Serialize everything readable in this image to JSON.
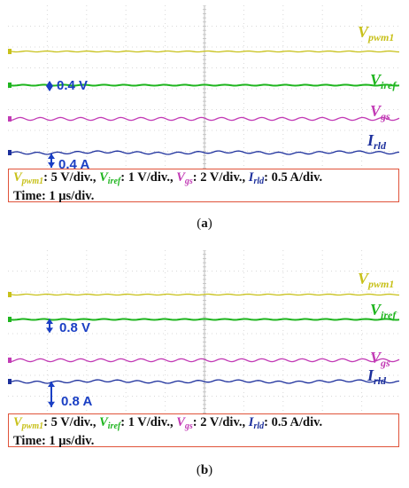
{
  "panels": [
    {
      "id": "a",
      "label": "(a)",
      "label_letter": "a",
      "traces": [
        {
          "key": "vpwm",
          "name_main": "V",
          "name_sub": "pwm1",
          "color": "#c8c11a"
        },
        {
          "key": "viref",
          "name_main": "V",
          "name_sub": "iref",
          "color": "#1fb51f"
        },
        {
          "key": "vgs",
          "name_main": "V",
          "name_sub": "gs",
          "color": "#c23bb5"
        },
        {
          "key": "irld",
          "name_main": "I",
          "name_sub": "rld",
          "color": "#1c2f9c"
        }
      ],
      "annotations": {
        "viref_step": "0.4 V",
        "irld_step": "0.4  A"
      },
      "caption": {
        "vpwm": {
          "name_main": "V",
          "name_sub": "pwm1",
          "unit": ": 5 V/div., "
        },
        "viref": {
          "name_main": "V",
          "name_sub": "iref",
          "unit": ": 1 V/div., "
        },
        "vgs": {
          "name_main": "V",
          "name_sub": "gs",
          "unit": ": 2 V/div., "
        },
        "irld": {
          "name_main": "I",
          "name_sub": "rld",
          "unit": ": 0.5 A/div."
        },
        "time": "Time: 1 μs/div."
      }
    },
    {
      "id": "b",
      "label": "(b)",
      "label_letter": "b",
      "traces": [
        {
          "key": "vpwm",
          "name_main": "V",
          "name_sub": "pwm1",
          "color": "#c8c11a"
        },
        {
          "key": "viref",
          "name_main": "V",
          "name_sub": "iref",
          "color": "#1fb51f"
        },
        {
          "key": "vgs",
          "name_main": "V",
          "name_sub": "gs",
          "color": "#c23bb5"
        },
        {
          "key": "irld",
          "name_main": "I",
          "name_sub": "rld",
          "color": "#1c2f9c"
        }
      ],
      "annotations": {
        "viref_step": "0.8 V",
        "irld_step": "0.8  A"
      },
      "caption": {
        "vpwm": {
          "name_main": "V",
          "name_sub": "pwm1",
          "unit": ": 5 V/div., "
        },
        "viref": {
          "name_main": "V",
          "name_sub": "iref",
          "unit": ": 1 V/div., "
        },
        "vgs": {
          "name_main": "V",
          "name_sub": "gs",
          "unit": ": 2 V/div., "
        },
        "irld": {
          "name_main": "I",
          "name_sub": "rld",
          "unit": ": 0.5 A/div."
        },
        "time": "Time: 1 μs/div."
      }
    }
  ],
  "chart_data": [
    {
      "type": "line",
      "panel": "a",
      "grid": true,
      "series": [
        {
          "name": "Vpwm1",
          "values": [
            0,
            0,
            0,
            0,
            0,
            0,
            0,
            0,
            0,
            0
          ]
        },
        {
          "name": "Viref",
          "values": [
            0.4,
            0.4,
            0.4,
            0.4,
            0.4,
            0.4,
            0.4,
            0.4,
            0.4,
            0.4
          ]
        },
        {
          "name": "Vgs",
          "values": [
            0,
            0,
            0,
            0,
            0,
            0,
            0,
            0,
            0,
            0
          ]
        },
        {
          "name": "Irld",
          "values": [
            0.4,
            0.4,
            0.4,
            0.4,
            0.4,
            0.4,
            0.4,
            0.4,
            0.4,
            0.4
          ]
        }
      ]
    },
    {
      "type": "line",
      "panel": "b",
      "grid": true,
      "series": [
        {
          "name": "Vpwm1",
          "values": [
            0,
            0,
            0,
            0,
            0,
            0,
            0,
            0,
            0,
            0
          ]
        },
        {
          "name": "Viref",
          "values": [
            0.8,
            0.8,
            0.8,
            0.8,
            0.8,
            0.8,
            0.8,
            0.8,
            0.8,
            0.8
          ]
        },
        {
          "name": "Vgs",
          "values": [
            0,
            0,
            0,
            0,
            0,
            0,
            0,
            0,
            0,
            0
          ]
        },
        {
          "name": "Irld",
          "values": [
            0.8,
            0.8,
            0.8,
            0.8,
            0.8,
            0.8,
            0.8,
            0.8,
            0.8,
            0.8
          ]
        }
      ]
    }
  ]
}
